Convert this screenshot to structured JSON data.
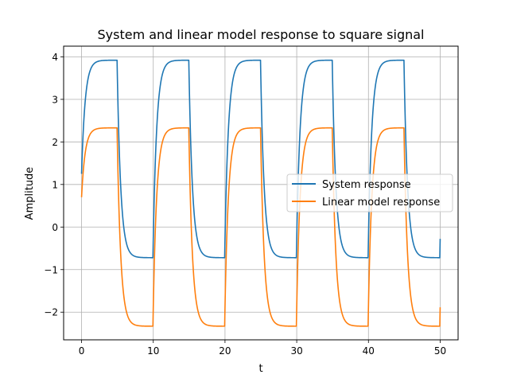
{
  "chart_data": {
    "type": "line",
    "title": "System and linear model response to square signal",
    "xlabel": "t",
    "ylabel": "Amplitude",
    "xlim": [
      -2.5,
      52.5
    ],
    "ylim": [
      -2.65,
      4.25
    ],
    "xticks": [
      0,
      10,
      20,
      30,
      40,
      50
    ],
    "xtick_labels": [
      "0",
      "10",
      "20",
      "30",
      "40",
      "50"
    ],
    "yticks": [
      -2,
      -1,
      0,
      1,
      2,
      3,
      4
    ],
    "ytick_labels": [
      "−2",
      "−1",
      "0",
      "1",
      "2",
      "3",
      "4"
    ],
    "grid": true,
    "legend_position": "center-right",
    "square_signal": {
      "period": 10,
      "high_duration": 5,
      "t_start": 0,
      "t_end": 50
    },
    "series": [
      {
        "name": "System response",
        "color": "#1f77b4",
        "initial_value": 1.25,
        "high_level": 3.92,
        "low_level": -0.72,
        "time_constant": 0.5
      },
      {
        "name": "Linear model response",
        "color": "#ff7f0e",
        "initial_value": 0.7,
        "high_level": 2.33,
        "low_level": -2.33,
        "time_constant": 0.5
      }
    ]
  }
}
